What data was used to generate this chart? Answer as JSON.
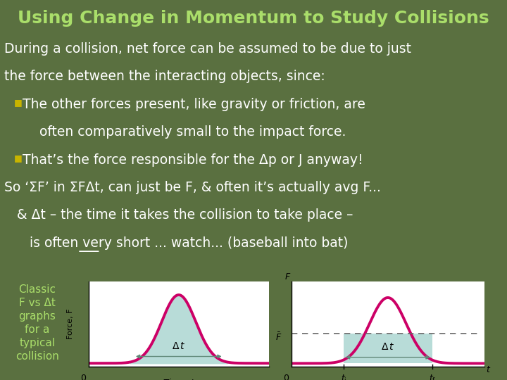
{
  "title": "Using Change in Momentum to Study Collisions",
  "title_color": "#aade6a",
  "title_fontsize": 18,
  "bg_color": "#5a7040",
  "text_color": "#ffffff",
  "bullet_color": "#c8b400",
  "body_line1": "During a collision, net force can be assumed to be due to just",
  "body_line2": "the force between the interacting objects, since:",
  "bullet1_line1": "The other forces present, like gravity or friction, are",
  "bullet1_line2": "    often comparatively small to the impact force.",
  "bullet2_line1": "That’s the force responsible for the Δp or J anyway!",
  "bottom_line1": "So ‘ΣF’ in ΣFΔt, can just be F, & often it’s actually avg F...",
  "bottom_line2": "   & Δt – the time it takes the collision to take place –",
  "bottom_line3": "      is often very short ... watch... (baseball into bat)",
  "sidebar_lines": [
    "Classic",
    "F vs Δt",
    "graphs",
    "for a",
    "typical",
    "collision"
  ],
  "sidebar_color": "#aade6a",
  "graph_bg": "#ffffff",
  "curve_color": "#cc0066",
  "fill_color": "#b8dcd8",
  "arrow_color": "#608878",
  "dashed_color": "#666666",
  "text_fontsize": 13.5,
  "bullet_fontsize": 13.5,
  "sidebar_fontsize": 11
}
